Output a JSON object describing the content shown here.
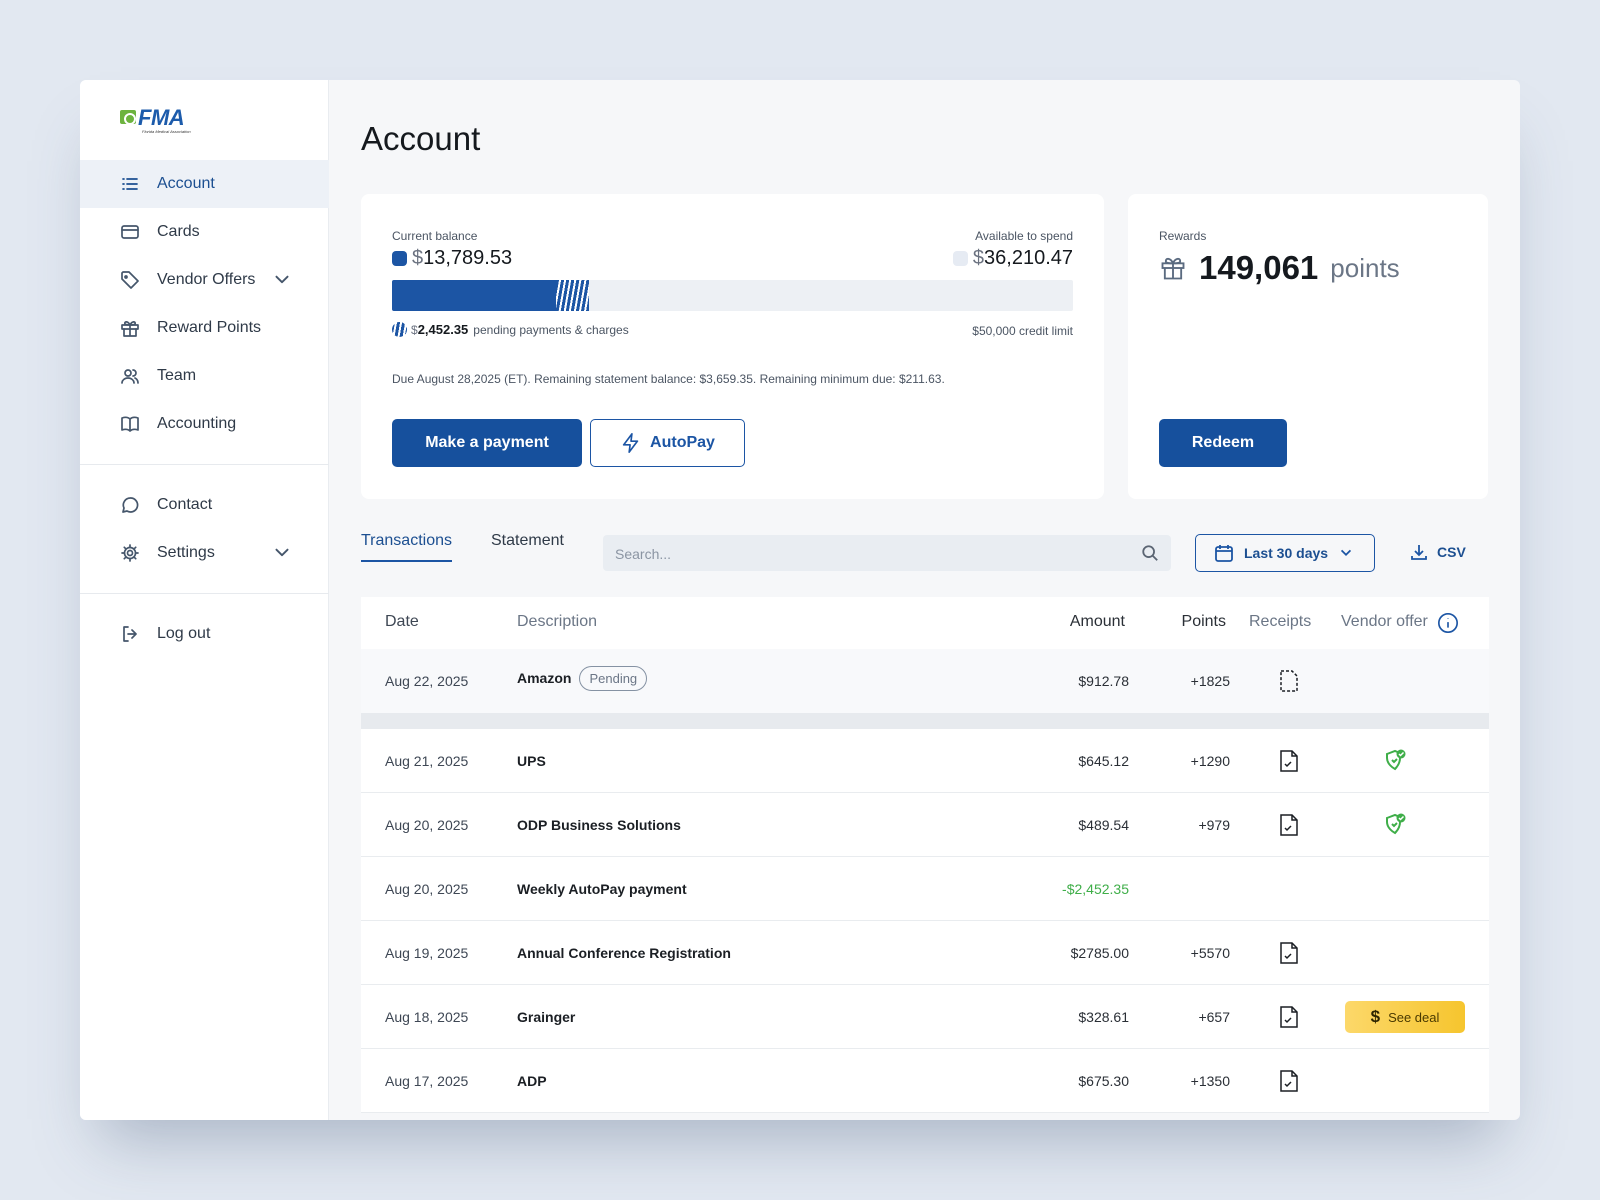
{
  "brand": {
    "logo_text": "FMA",
    "logo_subtitle": "Florida Medical Association"
  },
  "sidebar": {
    "items": [
      {
        "label": "Account",
        "icon": "list-icon",
        "active": true
      },
      {
        "label": "Cards",
        "icon": "card-icon"
      },
      {
        "label": "Vendor Offers",
        "icon": "tag-icon",
        "expandable": true
      },
      {
        "label": "Reward Points",
        "icon": "gift-icon"
      },
      {
        "label": "Team",
        "icon": "users-icon"
      },
      {
        "label": "Accounting",
        "icon": "book-icon"
      }
    ],
    "secondary": [
      {
        "label": "Contact",
        "icon": "chat-icon"
      },
      {
        "label": "Settings",
        "icon": "gear-icon",
        "expandable": true
      }
    ],
    "logout": {
      "label": "Log out",
      "icon": "logout-icon"
    }
  },
  "page": {
    "title": "Account"
  },
  "balance": {
    "current_label": "Current balance",
    "currency": "$",
    "current_value": "13,789.53",
    "available_label": "Available to spend",
    "available_value": "36,210.47",
    "pending_value": "2,452.35",
    "pending_label": "pending payments & charges",
    "credit_limit": "$50,000 credit limit",
    "current_fraction": 0.241,
    "pending_fraction": 0.049,
    "due_text": "Due August 28,2025 (ET). Remaining statement balance: $3,659.35. Remaining minimum due: $211.63.",
    "pay_button": "Make a payment",
    "autopay_button": "AutoPay"
  },
  "rewards": {
    "label": "Rewards",
    "points": "149,061",
    "unit": "points",
    "redeem_button": "Redeem"
  },
  "toolbar": {
    "tabs": [
      "Transactions",
      "Statement"
    ],
    "search_placeholder": "Search...",
    "date_filter": "Last 30 days",
    "export": "CSV"
  },
  "table": {
    "headers": {
      "date": "Date",
      "description": "Description",
      "amount": "Amount",
      "points": "Points",
      "receipts": "Receipts",
      "vendor": "Vendor offer"
    },
    "pending_row": {
      "date": "Aug 22, 2025",
      "description": "Amazon",
      "badge": "Pending",
      "amount": "$912.78",
      "points": "+1825"
    },
    "rows": [
      {
        "date": "Aug 21, 2025",
        "description": "UPS",
        "amount": "$645.12",
        "points": "+1290"
      },
      {
        "date": "Aug 20, 2025",
        "description": "ODP Business Solutions",
        "amount": "$489.54",
        "points": "+979"
      },
      {
        "date": "Aug 20, 2025",
        "description": "Weekly AutoPay payment",
        "amount": "-$2,452.35",
        "points": ""
      },
      {
        "date": "Aug 19, 2025",
        "description": "Annual Conference Registration",
        "amount": "$2785.00",
        "points": "+5570"
      },
      {
        "date": "Aug 18, 2025",
        "description": "Grainger",
        "amount": "$328.61",
        "points": "+657",
        "deal_label": "See deal"
      },
      {
        "date": "Aug 17, 2025",
        "description": "ADP",
        "amount": "$675.30",
        "points": "+1350"
      }
    ]
  },
  "colors": {
    "brand_blue": "#16509d",
    "credit_green": "#3fae49",
    "deal_yellow": "#f6c52e",
    "page_bg": "#e2e8f1"
  }
}
